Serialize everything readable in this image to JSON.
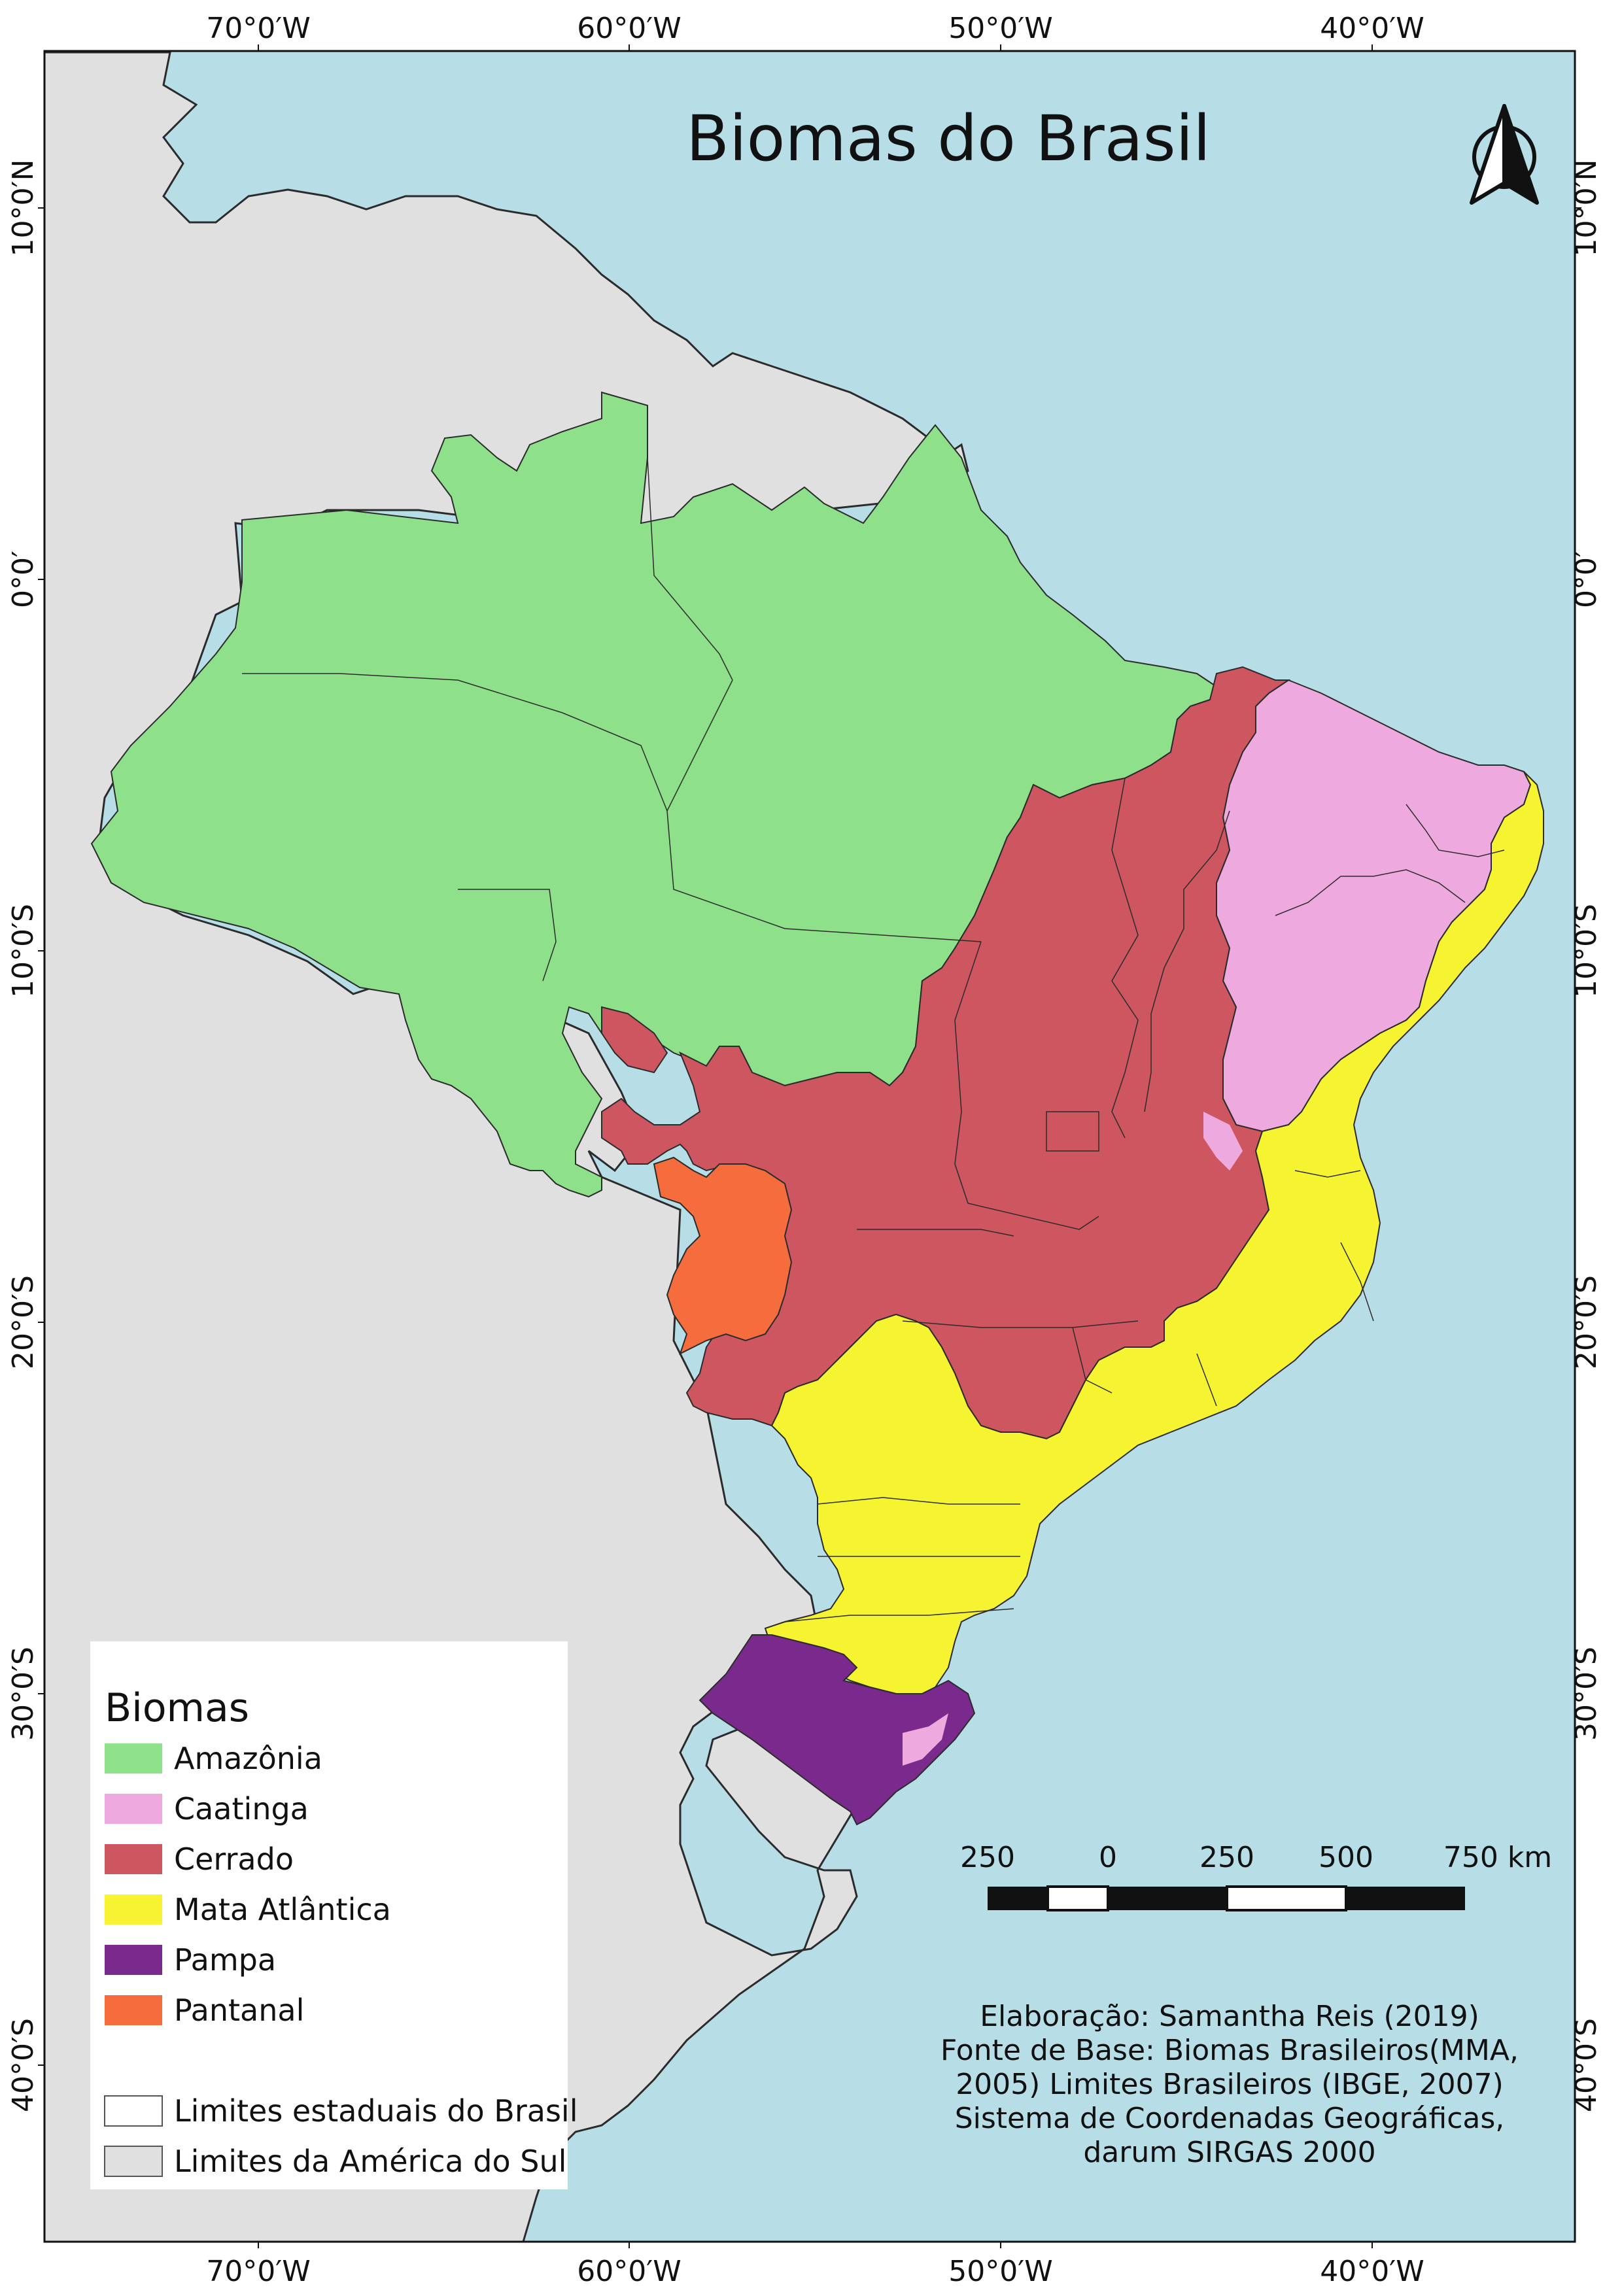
{
  "map": {
    "title": "Biomas do Brasil",
    "colors": {
      "ocean": "#b7dde6",
      "land": "#e0e0e0",
      "border": "#2b2b2b",
      "amazonia": "#8ee08b",
      "caatinga": "#eeaade",
      "cerrado": "#ce5661",
      "mata_atlantica": "#f6f330",
      "pampa": "#7a2a8c",
      "pantanal": "#f56d3d"
    },
    "lon_labels": [
      "70°0′W",
      "60°0′W",
      "50°0′W",
      "40°0′W"
    ],
    "lat_labels": [
      "10°0′N",
      "0°0′",
      "10°0′S",
      "20°0′S",
      "30°0′S",
      "40°0′S"
    ],
    "north_arrow_icon": "north-arrow-icon",
    "scale_bar": {
      "labels": [
        "250",
        "0",
        "250",
        "500",
        "750 km"
      ]
    },
    "legend": {
      "title": "Biomas",
      "items": [
        {
          "label": "Amazônia",
          "color": "#8ee08b"
        },
        {
          "label": "Caatinga",
          "color": "#eeaade"
        },
        {
          "label": "Cerrado",
          "color": "#ce5661"
        },
        {
          "label": "Mata Atlântica",
          "color": "#f6f330"
        },
        {
          "label": "Pampa",
          "color": "#7a2a8c"
        },
        {
          "label": "Pantanal",
          "color": "#f56d3d"
        }
      ],
      "boundary_items": [
        {
          "label": "Limites estaduais do Brasil",
          "color": "#ffffff"
        },
        {
          "label": "Limites da América do Sul",
          "color": "#e0e0e0"
        }
      ]
    },
    "credits": [
      "Elaboração: Samantha Reis (2019)",
      "Fonte de Base: Biomas Brasileiros(MMA,",
      "2005) Limites Brasileiros (IBGE, 2007)",
      "Sistema de Coordenadas Geográficas,",
      "darum SIRGAS 2000"
    ]
  }
}
